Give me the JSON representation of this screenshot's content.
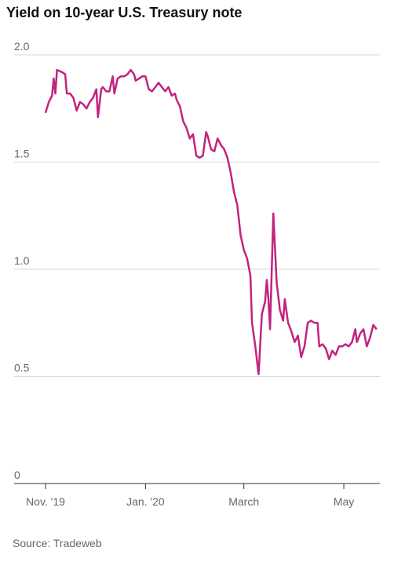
{
  "chart_data": {
    "type": "line",
    "title": "Yield on 10-year U.S. Treasury note",
    "source": "Source: Tradeweb",
    "x": [
      0,
      2,
      4,
      5,
      6,
      7,
      10,
      12,
      13,
      15,
      17,
      19,
      21,
      23,
      25,
      27,
      29,
      31,
      32,
      34,
      35,
      37,
      39,
      41,
      42,
      44,
      46,
      48,
      50,
      52,
      54,
      55,
      57,
      59,
      61,
      63,
      65,
      67,
      69,
      71,
      73,
      75,
      77,
      79,
      80,
      82,
      84,
      86,
      88,
      90,
      92,
      94,
      96,
      98,
      99,
      101,
      103,
      105,
      107,
      109,
      111,
      113,
      115,
      117,
      119,
      121,
      123,
      125,
      126,
      128,
      130,
      132,
      134,
      135,
      136,
      137,
      139,
      141,
      143,
      145,
      146,
      148,
      150,
      152,
      154,
      156,
      158,
      160,
      162,
      164,
      166,
      167,
      169,
      171,
      173,
      175,
      177,
      179,
      181,
      183,
      185,
      187,
      189,
      190,
      192,
      194,
      196,
      198,
      200,
      202
    ],
    "series": [
      {
        "name": "Yield",
        "color": "#c2237d",
        "values": [
          1.73,
          1.78,
          1.81,
          1.89,
          1.82,
          1.93,
          1.92,
          1.91,
          1.82,
          1.82,
          1.8,
          1.74,
          1.78,
          1.77,
          1.75,
          1.78,
          1.8,
          1.84,
          1.71,
          1.84,
          1.85,
          1.83,
          1.83,
          1.9,
          1.82,
          1.89,
          1.9,
          1.9,
          1.91,
          1.93,
          1.91,
          1.88,
          1.89,
          1.9,
          1.9,
          1.84,
          1.83,
          1.85,
          1.87,
          1.85,
          1.83,
          1.85,
          1.81,
          1.82,
          1.79,
          1.76,
          1.69,
          1.66,
          1.61,
          1.63,
          1.53,
          1.52,
          1.53,
          1.64,
          1.62,
          1.56,
          1.55,
          1.61,
          1.58,
          1.56,
          1.52,
          1.45,
          1.36,
          1.3,
          1.16,
          1.09,
          1.05,
          0.97,
          0.75,
          0.64,
          0.51,
          0.79,
          0.85,
          0.95,
          0.86,
          0.72,
          1.26,
          0.94,
          0.81,
          0.76,
          0.86,
          0.75,
          0.71,
          0.66,
          0.69,
          0.59,
          0.64,
          0.75,
          0.76,
          0.75,
          0.75,
          0.64,
          0.65,
          0.63,
          0.58,
          0.62,
          0.6,
          0.64,
          0.64,
          0.65,
          0.64,
          0.66,
          0.72,
          0.66,
          0.7,
          0.72,
          0.64,
          0.68,
          0.74,
          0.72
        ]
      }
    ],
    "xlim": [
      0,
      204
    ],
    "xticks": [
      {
        "value": 0,
        "label": "Nov. '19"
      },
      {
        "value": 61,
        "label": "Jan. '20"
      },
      {
        "value": 121,
        "label": "March"
      },
      {
        "value": 182,
        "label": "May"
      }
    ],
    "ylim": [
      0,
      2
    ],
    "yticks": [
      0,
      0.5,
      {
        "value": 1,
        "label": "1.0"
      },
      1.5,
      {
        "value": 2,
        "label": "2.0"
      }
    ],
    "grid": true
  }
}
